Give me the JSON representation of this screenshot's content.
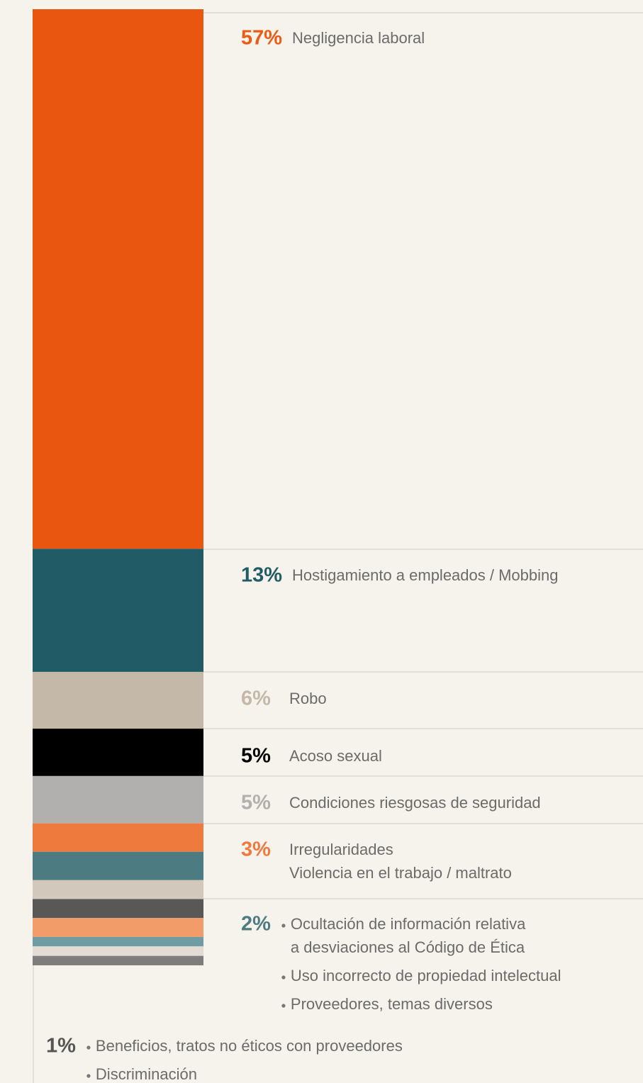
{
  "chart_data": {
    "type": "stacked-bar",
    "series": [
      {
        "color": "#e8560f",
        "values": [
          57
        ]
      },
      {
        "color": "#215c66",
        "values": [
          13
        ]
      },
      {
        "color": "#c4b8a9",
        "values": [
          6
        ]
      },
      {
        "color": "#000000",
        "values": [
          5
        ]
      },
      {
        "color": "#b1b0ae",
        "values": [
          5
        ]
      },
      {
        "color": "#ef7a3e",
        "values": [
          3
        ]
      },
      {
        "color": "#4d7b82",
        "values": [
          3
        ]
      },
      {
        "color": "#d3c8bc",
        "values": [
          2
        ]
      },
      {
        "color": "#5a5856",
        "values": [
          2
        ]
      },
      {
        "color": "#f29c69",
        "values": [
          2
        ]
      },
      {
        "color": "#6f9ba3",
        "values": [
          1
        ]
      },
      {
        "color": "#e2dcd4",
        "values": [
          1
        ]
      },
      {
        "color": "#7e7d7b",
        "values": [
          1
        ]
      }
    ],
    "groups": [
      {
        "value_label": "57%",
        "color": "#ec5a14",
        "bulleted": false,
        "items": [
          "Negligencia laboral"
        ]
      },
      {
        "value_label": "13%",
        "color": "#215c66",
        "bulleted": false,
        "items": [
          "Hostigamiento a empleados / Mobbing"
        ]
      },
      {
        "value_label": "6%",
        "color": "#c4b8a9",
        "bulleted": false,
        "items": [
          "Robo"
        ]
      },
      {
        "value_label": "5%",
        "color": "#000000",
        "bulleted": false,
        "items": [
          "Acoso sexual"
        ]
      },
      {
        "value_label": "5%",
        "color": "#b1b0ae",
        "bulleted": false,
        "items": [
          "Condiciones riesgosas de seguridad"
        ]
      },
      {
        "value_label": "3%",
        "color": "#ef7a3e",
        "bulleted": false,
        "items": [
          "Irregularidades",
          "Violencia en el trabajo / maltrato"
        ]
      },
      {
        "value_label": "2%",
        "color": "#4d7b82",
        "bulleted": true,
        "items": [
          [
            "Ocultación de información relativa",
            "a desviaciones al Código de Ética"
          ],
          "Uso incorrecto de propiedad intelectual",
          "Proveedores, temas diversos"
        ]
      },
      {
        "value_label": "1%",
        "color": "#555555",
        "bulleted": true,
        "items": [
          "Beneficios, tratos no éticos con proveedores",
          "Discriminación"
        ]
      }
    ]
  }
}
